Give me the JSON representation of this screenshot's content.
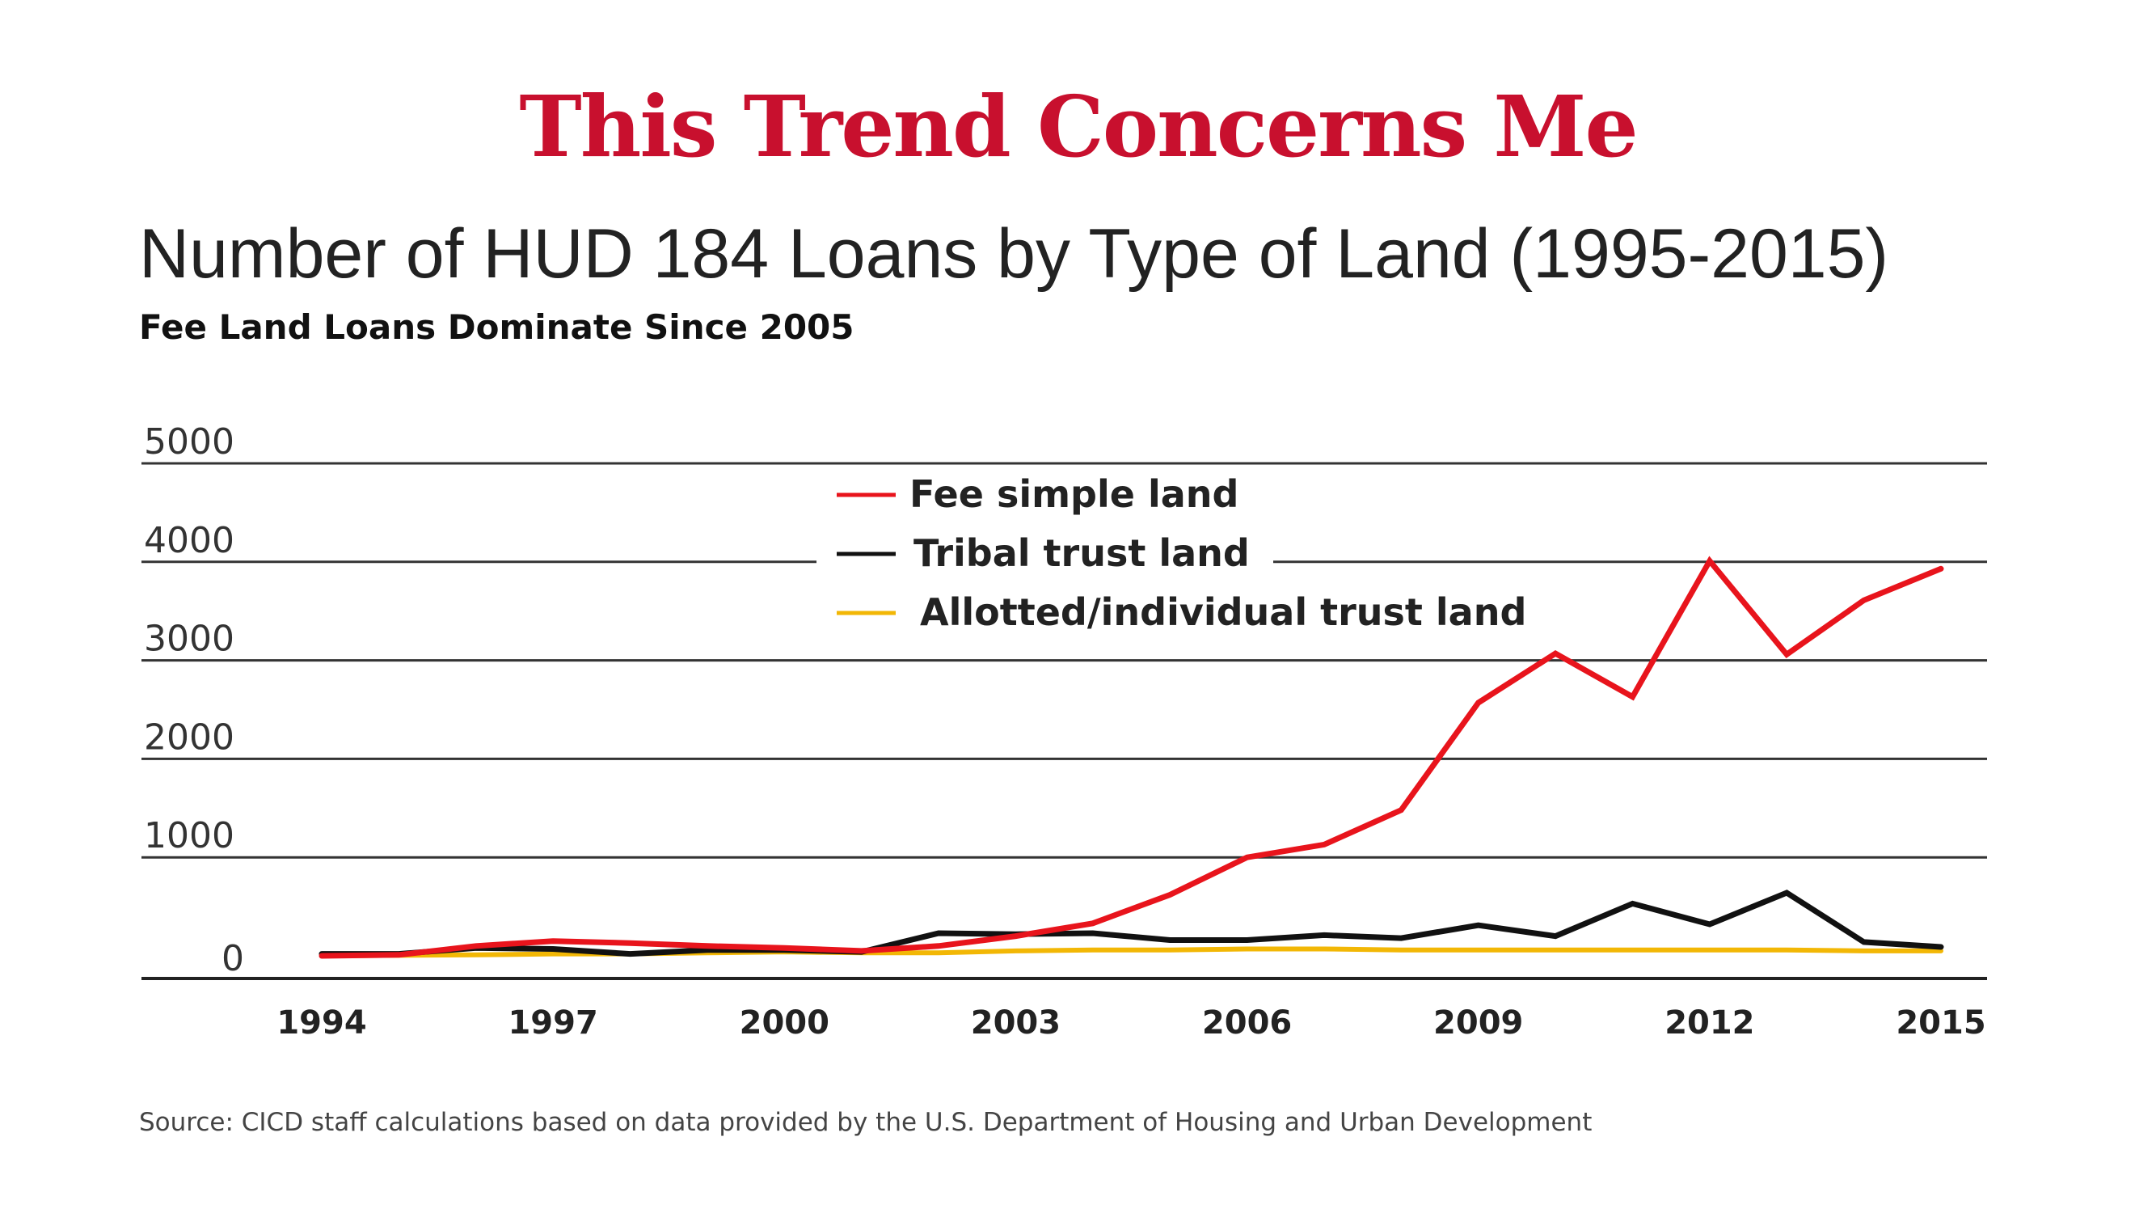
{
  "headline": "This Trend Concerns Me",
  "source": "Source: CICD staff calculations based on data provided by the U.S. Department of Housing and Urban Development",
  "colors": {
    "headline": "#c8102e",
    "fee_simple": "#e8141c",
    "tribal": "#111111",
    "allotted": "#f2b705",
    "grid": "#333333"
  },
  "chart_data": {
    "type": "line",
    "title": "Number of HUD 184 Loans by Type of Land (1995-2015)",
    "subtitle": "Fee Land Loans Dominate Since 2005",
    "xlabel": "",
    "ylabel": "",
    "x": [
      1994,
      1995,
      1996,
      1997,
      1998,
      1999,
      2000,
      2001,
      2002,
      2003,
      2004,
      2005,
      2006,
      2007,
      2008,
      2009,
      2010,
      2011,
      2012,
      2013,
      2014,
      2015
    ],
    "xticks": [
      "1994",
      "1997",
      "2000",
      "2003",
      "2006",
      "2009",
      "2012",
      "2015"
    ],
    "xtick_values": [
      1994,
      1997,
      2000,
      2003,
      2006,
      2009,
      2012,
      2015
    ],
    "yticks": [
      "5000",
      "4000",
      "3000",
      "2000",
      "1000",
      "0"
    ],
    "ytick_values": [
      5000,
      4000,
      3000,
      2000,
      1000,
      0
    ],
    "xlim": [
      1994,
      2015
    ],
    "ylim": [
      -230,
      5000
    ],
    "grid": true,
    "legend_position": "top-center",
    "series": [
      {
        "name": "Fee simple land",
        "color": "#e8141c",
        "values": [
          0,
          10,
          100,
          150,
          130,
          100,
          80,
          50,
          100,
          200,
          330,
          620,
          1000,
          1130,
          1480,
          2570,
          3070,
          2630,
          4010,
          3060,
          3610,
          3930
        ]
      },
      {
        "name": "Tribal trust land",
        "color": "#111111",
        "values": [
          20,
          20,
          80,
          70,
          20,
          60,
          60,
          40,
          230,
          220,
          230,
          160,
          160,
          210,
          180,
          310,
          200,
          530,
          320,
          640,
          140,
          90
        ]
      },
      {
        "name": "Allotted/individual trust land",
        "color": "#f2b705",
        "values": [
          0,
          5,
          10,
          20,
          20,
          30,
          40,
          30,
          30,
          50,
          60,
          60,
          70,
          70,
          60,
          60,
          60,
          60,
          60,
          60,
          50,
          50
        ]
      }
    ]
  }
}
